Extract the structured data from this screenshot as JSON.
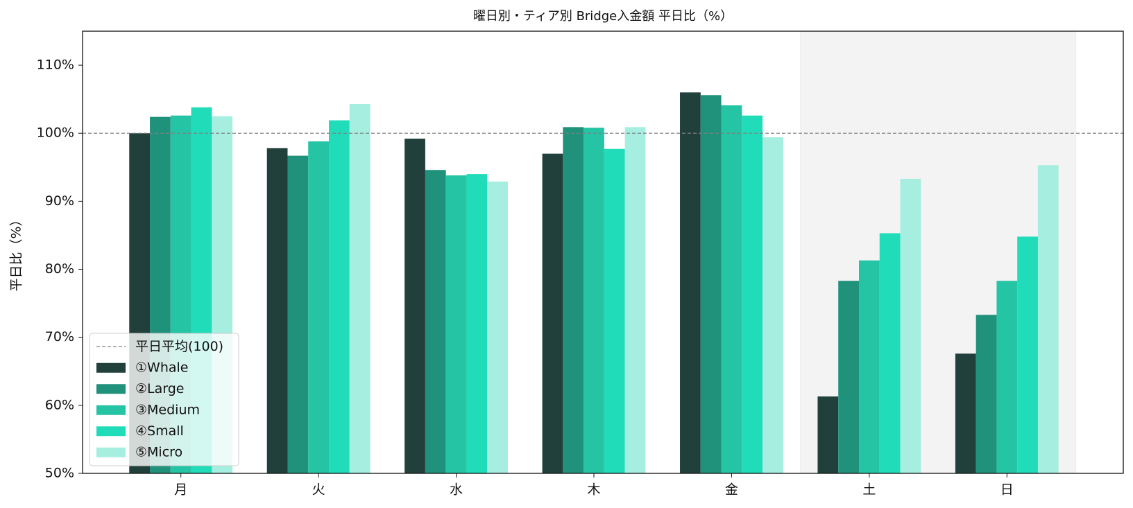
{
  "chart_data": {
    "type": "bar",
    "title": "曜日別・ティア別 Bridge入金額 平日比（%）",
    "y_label": "平日比（%）",
    "categories": [
      "月",
      "火",
      "水",
      "木",
      "金",
      "土",
      "日"
    ],
    "series": [
      {
        "name": "①Whale",
        "color": "#21403b",
        "values": [
          100.0,
          97.8,
          99.2,
          97.0,
          106.0,
          61.3,
          67.6
        ]
      },
      {
        "name": "②Large",
        "color": "#20917b",
        "values": [
          102.4,
          96.7,
          94.6,
          100.9,
          105.6,
          78.3,
          73.3
        ]
      },
      {
        "name": "③Medium",
        "color": "#25c4a4",
        "values": [
          102.6,
          98.8,
          93.8,
          100.8,
          104.1,
          81.3,
          78.3
        ]
      },
      {
        "name": "④Small",
        "color": "#20dcb9",
        "values": [
          103.8,
          101.9,
          94.0,
          97.7,
          102.6,
          85.3,
          84.8
        ]
      },
      {
        "name": "⑤Micro",
        "color": "#a5eee0",
        "values": [
          102.5,
          104.3,
          92.9,
          100.9,
          99.4,
          93.3,
          95.3
        ]
      }
    ],
    "ylim": [
      50,
      115
    ],
    "yticks": [
      {
        "value": 50,
        "label": "50%"
      },
      {
        "value": 60,
        "label": "60%"
      },
      {
        "value": 70,
        "label": "70%"
      },
      {
        "value": 80,
        "label": "80%"
      },
      {
        "value": 90,
        "label": "90%"
      },
      {
        "value": 100,
        "label": "100%"
      },
      {
        "value": 110,
        "label": "110%"
      }
    ],
    "reference": {
      "value": 100,
      "label": "平日平均(100)",
      "color": "#808080"
    },
    "highlight_categories": [
      5,
      6
    ],
    "legend": "lower left"
  }
}
